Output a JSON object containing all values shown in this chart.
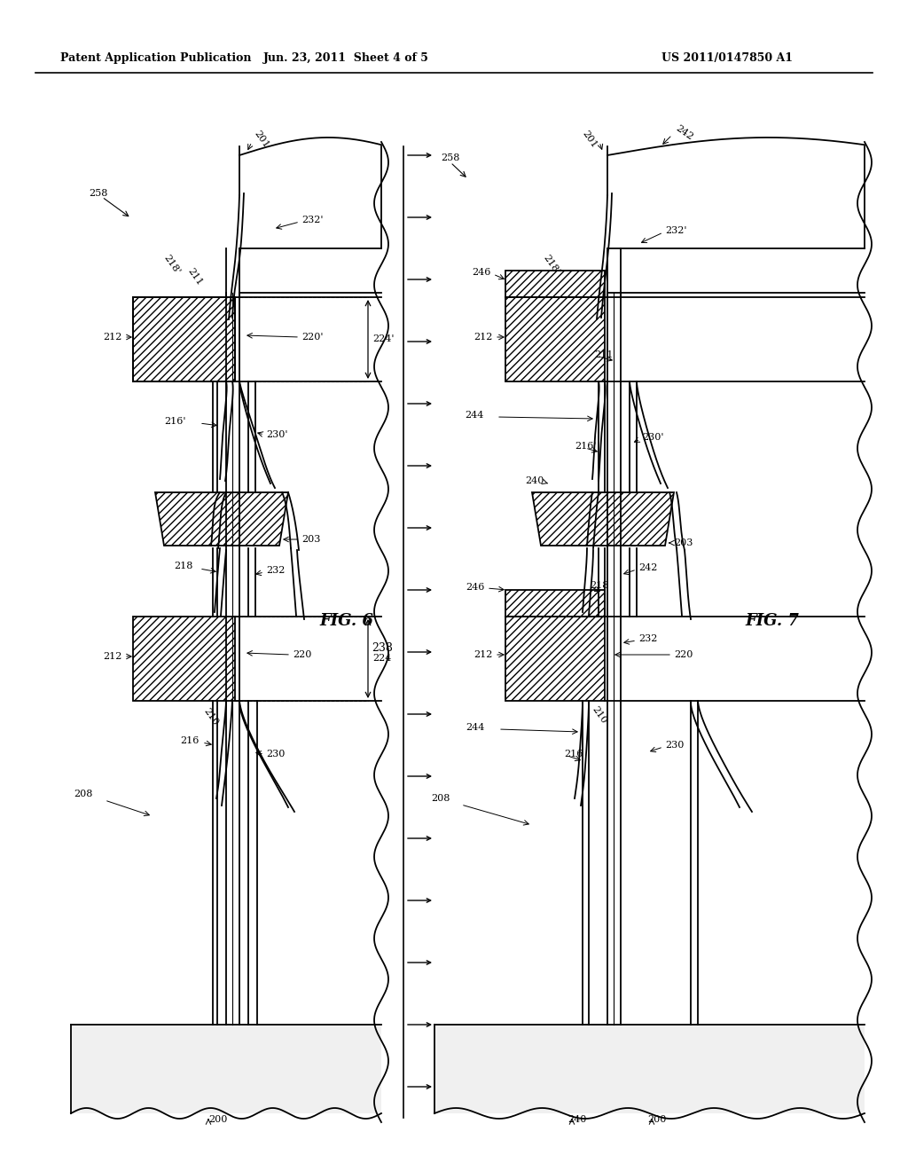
{
  "header_left": "Patent Application Publication",
  "header_center": "Jun. 23, 2011  Sheet 4 of 5",
  "header_right": "US 2011/0147850 A1",
  "fig6_label": "FIG. 6",
  "fig7_label": "FIG. 7",
  "bg_color": "#ffffff",
  "line_color": "#000000"
}
